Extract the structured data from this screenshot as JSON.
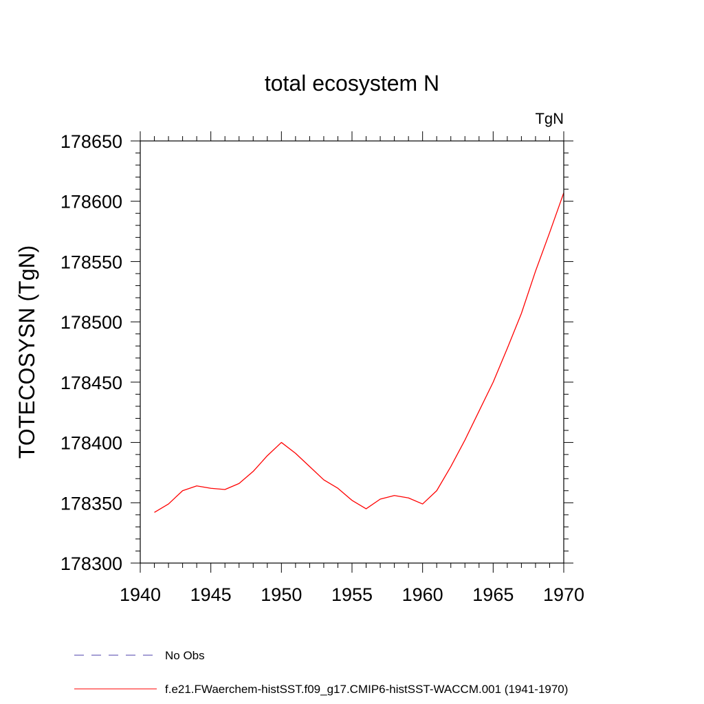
{
  "chart_data": {
    "type": "line",
    "title": "total ecosystem N",
    "units_label": "TgN",
    "ylabel": "TOTECOSYSN  (TgN)",
    "xlabel": "",
    "xlim": [
      1940,
      1970
    ],
    "ylim": [
      178300,
      178650
    ],
    "x_ticks": [
      1940,
      1945,
      1950,
      1955,
      1960,
      1965,
      1970
    ],
    "y_ticks": [
      178300,
      178350,
      178400,
      178450,
      178500,
      178550,
      178600,
      178650
    ],
    "x_tick_labels": [
      "1940",
      "1945",
      "1950",
      "1955",
      "1960",
      "1965",
      "1970"
    ],
    "y_tick_labels": [
      "178300",
      "178350",
      "178400",
      "178450",
      "178500",
      "178550",
      "178600",
      "178650"
    ],
    "grid": false,
    "legend_position": "bottom",
    "series": [
      {
        "name": "f.e21.FWaerchem-histSST.f09_g17.CMIP6-histSST-WACCM.001 (1941-1970)",
        "color": "#ff0000",
        "style": "solid",
        "x": [
          1941,
          1942,
          1943,
          1944,
          1945,
          1946,
          1947,
          1948,
          1949,
          1950,
          1951,
          1952,
          1953,
          1954,
          1955,
          1956,
          1957,
          1958,
          1959,
          1960,
          1961,
          1962,
          1963,
          1964,
          1965,
          1966,
          1967,
          1968,
          1969,
          1970
        ],
        "values": [
          178342,
          178349,
          178360,
          178364,
          178362,
          178361,
          178366,
          178376,
          178389,
          178400,
          178391,
          178380,
          178369,
          178362,
          178352,
          178345,
          178353,
          178356,
          178354,
          178349,
          178360,
          178380,
          178402,
          178426,
          178450,
          178478,
          178507,
          178542,
          178574,
          178607
        ]
      }
    ],
    "legend": [
      {
        "label": "No Obs",
        "color": "#4b3ca8",
        "style": "dashed"
      },
      {
        "label": "f.e21.FWaerchem-histSST.f09_g17.CMIP6-histSST-WACCM.001 (1941-1970)",
        "color": "#ff0000",
        "style": "solid"
      }
    ]
  }
}
